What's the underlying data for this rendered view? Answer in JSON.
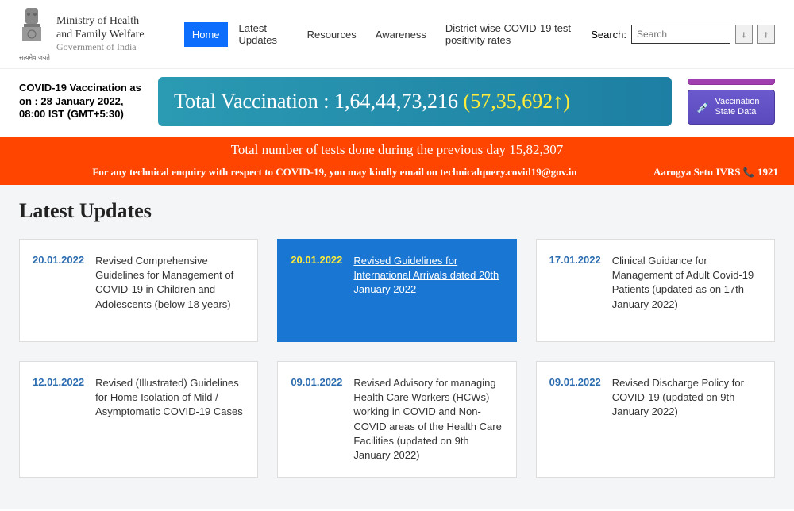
{
  "header": {
    "org_line1": "Ministry of Health",
    "org_line2": "and Family Welfare",
    "org_sub": "Government of India",
    "motto": "सत्यमेव जयते",
    "nav": [
      "Home",
      "Latest Updates",
      "Resources",
      "Awareness",
      "District-wise COVID-19 test positivity rates"
    ],
    "active_nav": 0,
    "search_label": "Search:",
    "search_placeholder": "Search",
    "font_dec": "↓",
    "font_inc": "↑"
  },
  "banner": {
    "vacc_label": "COVID-19 Vaccination as on : 28 January 2022, 08:00 IST (GMT+5:30)",
    "total_label": "Total Vaccination : ",
    "total_value": "1,64,44,73,216",
    "today_value": " (57,35,692↑)",
    "state_btn": "Vaccination State Data"
  },
  "orange": {
    "line1": "Total number of tests done during the previous day 15,82,307",
    "tech_email": "For any technical enquiry with respect to COVID-19, you may kindly email on technicalquery.covid19@gov.in",
    "ivrs": "Aarogya Setu IVRS ",
    "ivrs_num": " 1921"
  },
  "updates": {
    "title": "Latest Updates",
    "cards": [
      {
        "date": "20.01.2022",
        "title": "Revised Comprehensive Guidelines for Management of COVID-19 in Children and Adolescents (below 18 years)",
        "highlight": false
      },
      {
        "date": "20.01.2022",
        "title": "Revised Guidelines for International Arrivals dated 20th January 2022",
        "highlight": true
      },
      {
        "date": "17.01.2022",
        "title": "Clinical Guidance for Management of Adult Covid-19 Patients (updated as on 17th January 2022)",
        "highlight": false
      },
      {
        "date": "12.01.2022",
        "title": "Revised (Illustrated) Guidelines for Home Isolation of Mild / Asymptomatic COVID-19 Cases",
        "highlight": false
      },
      {
        "date": "09.01.2022",
        "title": "Revised Advisory for managing Health Care Workers (HCWs) working in COVID and Non-COVID areas of the Health Care Facilities (updated on 9th January 2022)",
        "highlight": false
      },
      {
        "date": "09.01.2022",
        "title": "Revised Discharge Policy for COVID-19 (updated on 9th January 2022)",
        "highlight": false
      }
    ]
  }
}
